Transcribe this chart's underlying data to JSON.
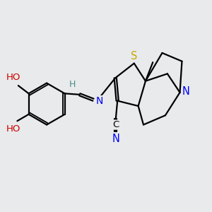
{
  "background_color": "#e8eaeb",
  "atom_colors": {
    "C": "#000000",
    "N": "#0000ff",
    "S": "#c8a800",
    "O": "#cc0000",
    "H": "#4a8c8c"
  },
  "bond_color": "#000000",
  "bond_width": 1.6,
  "font_size": 9.5,
  "figsize": [
    3.0,
    3.0
  ],
  "dpi": 100
}
